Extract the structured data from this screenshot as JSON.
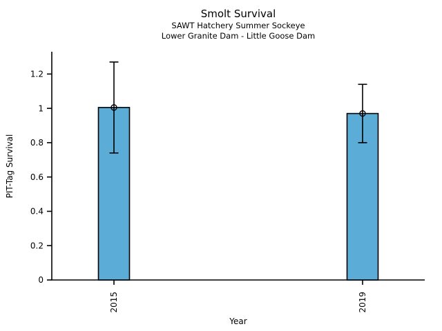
{
  "chart_data": {
    "type": "bar",
    "title": "Smolt Survival",
    "subtitles": [
      "SAWT Hatchery Summer Sockeye",
      "Lower Granite Dam - Little Goose Dam"
    ],
    "xlabel": "Year",
    "ylabel": "PIT-Tag Survival",
    "categories": [
      "2015",
      "2019"
    ],
    "x": [
      2015,
      2019
    ],
    "values": [
      1.005,
      0.97
    ],
    "error_low": [
      0.74,
      0.8
    ],
    "error_high": [
      1.27,
      1.14
    ],
    "marker": "open-circle",
    "xlim": [
      2014,
      2020
    ],
    "ylim": [
      0,
      1.33
    ],
    "yticks": [
      0,
      0.2,
      0.4,
      0.6,
      0.8,
      1,
      1.2
    ],
    "ytick_labels": [
      "0",
      "0.2",
      "0.4",
      "0.6",
      "0.8",
      "1",
      "1.2"
    ],
    "bar_width_years": 0.5,
    "bar_color": "#5BACD6",
    "bar_edge_color": "#000000",
    "error_color": "#000000",
    "axis_color": "#000000",
    "background": "#FFFFFF",
    "grid": false,
    "legend": null,
    "x_tick_label_rotation_deg": 90
  }
}
